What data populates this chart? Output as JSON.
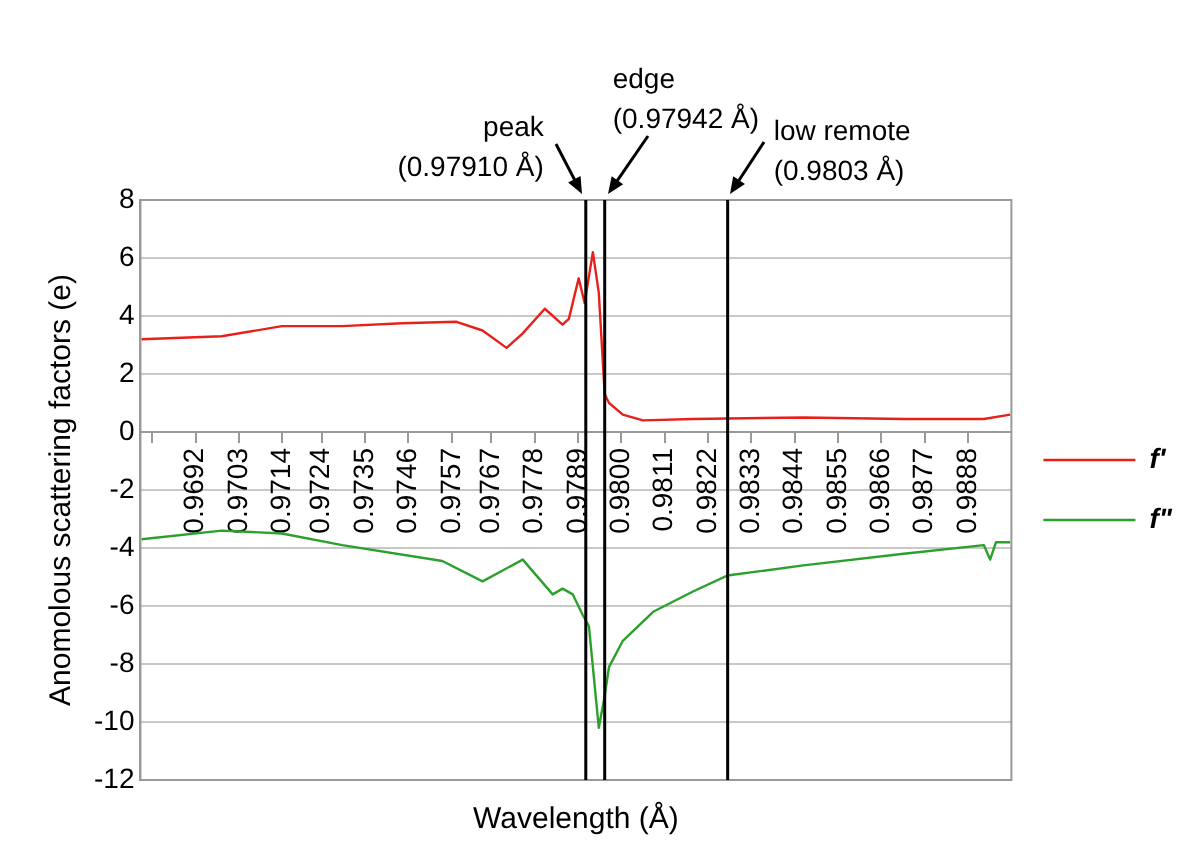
{
  "chart_data": {
    "type": "line",
    "xlabel": "Wavelength (Å)",
    "ylabel": "Anomolous scattering factors (e)",
    "xlim": [
      0.9678,
      0.9899
    ],
    "ylim": [
      -12,
      8
    ],
    "xticks": [
      {
        "value": 0.9681,
        "label": null
      },
      0.9692,
      0.9703,
      0.9714,
      0.9724,
      0.9735,
      0.9746,
      0.9757,
      0.9767,
      0.9778,
      0.9789,
      {
        "value": 0.98,
        "label": "0.9800"
      },
      0.9811,
      0.9822,
      0.9833,
      0.9844,
      0.9855,
      0.9866,
      0.9877,
      0.9888
    ],
    "yticks": [
      -12,
      -10,
      -8,
      -6,
      -4,
      -2,
      0,
      2,
      4,
      6,
      8
    ],
    "grid": "y",
    "legend": "right",
    "marker": "none",
    "line_style": "solid",
    "ref_lines": [
      {
        "axis": "x",
        "value": 0.9791,
        "label": "peak\n(0.97910 Å)",
        "color": "#000000"
      },
      {
        "axis": "x",
        "value": 0.97958,
        "label": "edge\n(0.97942 Å)",
        "color": "#000000"
      },
      {
        "axis": "x",
        "value": 0.9827,
        "label": "low remote\n(0.9803 Å)",
        "color": "#000000"
      }
    ],
    "series": [
      {
        "name": "f'",
        "color": "#e8201c",
        "x": [
          0.96783,
          0.96986,
          0.97139,
          0.97292,
          0.97444,
          0.97582,
          0.97648,
          0.97709,
          0.9775,
          0.97806,
          0.97851,
          0.97867,
          0.97892,
          0.97907,
          0.97928,
          0.97943,
          0.97958,
          0.97969,
          0.98004,
          0.98055,
          0.98182,
          0.98462,
          0.98717,
          0.9892,
          0.98987
        ],
        "values": [
          3.2,
          3.3,
          3.65,
          3.65,
          3.75,
          3.8,
          3.5,
          2.9,
          3.4,
          4.25,
          3.7,
          3.9,
          5.3,
          4.45,
          6.2,
          4.8,
          1.3,
          1.0,
          0.6,
          0.4,
          0.45,
          0.5,
          0.45,
          0.45,
          0.6
        ]
      },
      {
        "name": "f\"",
        "color": "#2ca02c",
        "x": [
          0.96783,
          0.96986,
          0.97139,
          0.97292,
          0.97546,
          0.97648,
          0.9775,
          0.97826,
          0.97851,
          0.97877,
          0.97902,
          0.97918,
          0.97943,
          0.97958,
          0.97969,
          0.98004,
          0.98081,
          0.98182,
          0.98269,
          0.98462,
          0.98717,
          0.9892,
          0.98936,
          0.98951,
          0.98987
        ],
        "values": [
          -3.7,
          -3.4,
          -3.5,
          -3.9,
          -4.45,
          -5.15,
          -4.4,
          -5.6,
          -5.4,
          -5.6,
          -6.3,
          -6.7,
          -10.2,
          -9.1,
          -8.1,
          -7.2,
          -6.2,
          -5.5,
          -4.95,
          -4.6,
          -4.2,
          -3.9,
          -4.4,
          -3.8,
          -3.8
        ]
      }
    ]
  }
}
